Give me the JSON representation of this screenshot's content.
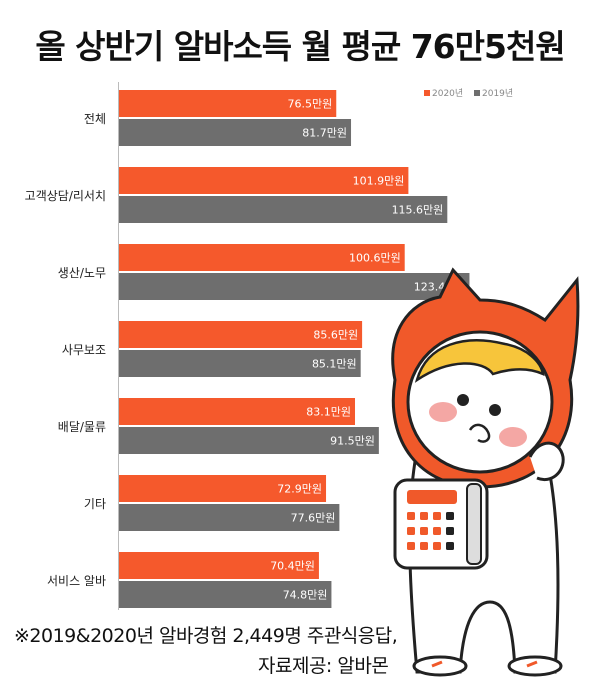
{
  "title": "올 상반기 알바소득 월 평균 76만5천원",
  "footnote": {
    "line1": "※2019&2020년 알바경험 2,449명 주관식응답,",
    "line2": "자료제공: 알바몬"
  },
  "colors": {
    "series_2020": "#f5592c",
    "series_2019": "#6e6e6e",
    "bar_text": "#ffffff",
    "label_text": "#222222",
    "mascot_orange": "#f0592a"
  },
  "chart_data": {
    "type": "bar",
    "orientation": "horizontal",
    "value_suffix": "만원",
    "categories": [
      "전체",
      "고객상담/리서치",
      "생산/노무",
      "사무보조",
      "배달/물류",
      "기타",
      "서비스 알바"
    ],
    "series": [
      {
        "name": "2020년",
        "values": [
          76.5,
          101.9,
          100.6,
          85.6,
          83.1,
          72.9,
          70.4
        ]
      },
      {
        "name": "2019년",
        "values": [
          81.7,
          115.6,
          123.4,
          85.1,
          91.5,
          77.6,
          74.8
        ]
      }
    ],
    "xlim": [
      0,
      130
    ],
    "legend_position": "top-right",
    "grid": false
  }
}
